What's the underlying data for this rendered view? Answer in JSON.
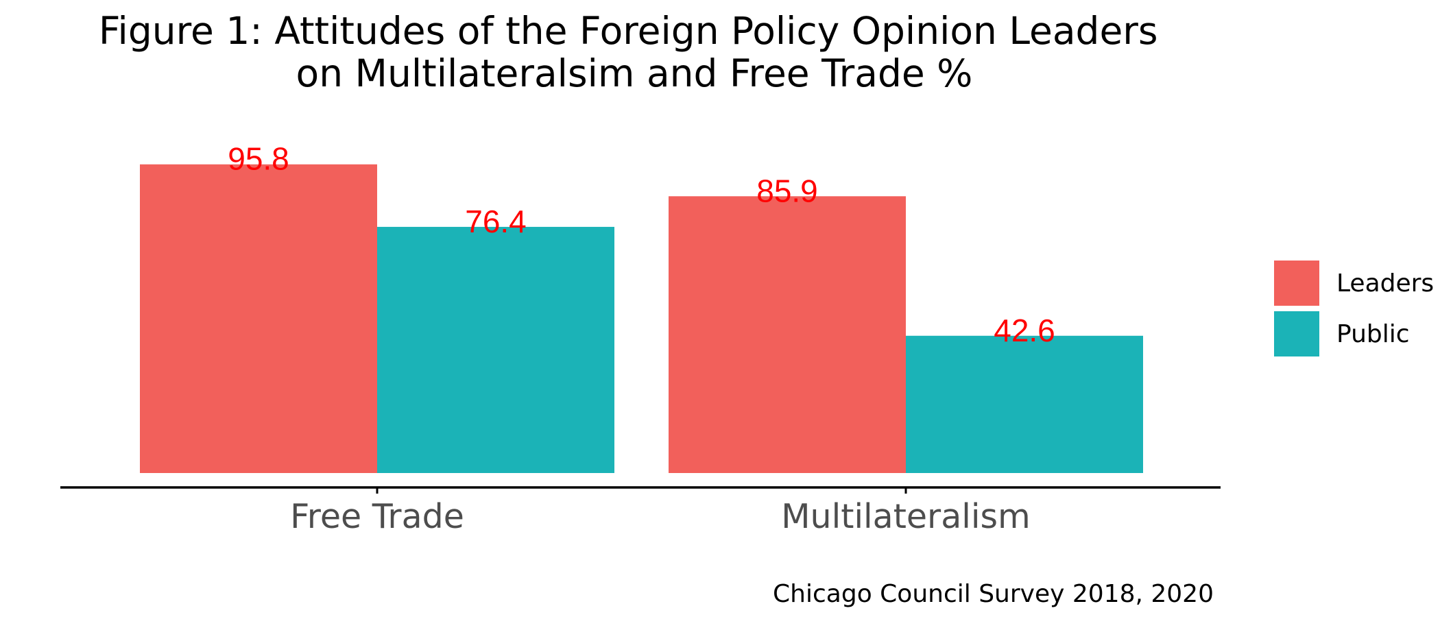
{
  "chart_data": {
    "type": "bar",
    "title": "Figure 1: Attitudes of the Foreign Policy Opinion Leaders\non Multilateralsim and Free Trade %",
    "categories": [
      "Free Trade",
      "Multilateralism"
    ],
    "series": [
      {
        "name": "Leaders",
        "values": [
          95.8,
          85.9
        ],
        "color": "#F2605B"
      },
      {
        "name": "Public",
        "values": [
          76.4,
          42.6
        ],
        "color": "#1BB3B7"
      }
    ],
    "data_label_color": "#FF0000",
    "xlabel": "",
    "ylabel": "",
    "ylim": [
      0,
      100
    ],
    "y_axis_shown": false,
    "grid": false,
    "legend_position": "right",
    "caption": "Chicago Council Survey 2018, 2020"
  }
}
